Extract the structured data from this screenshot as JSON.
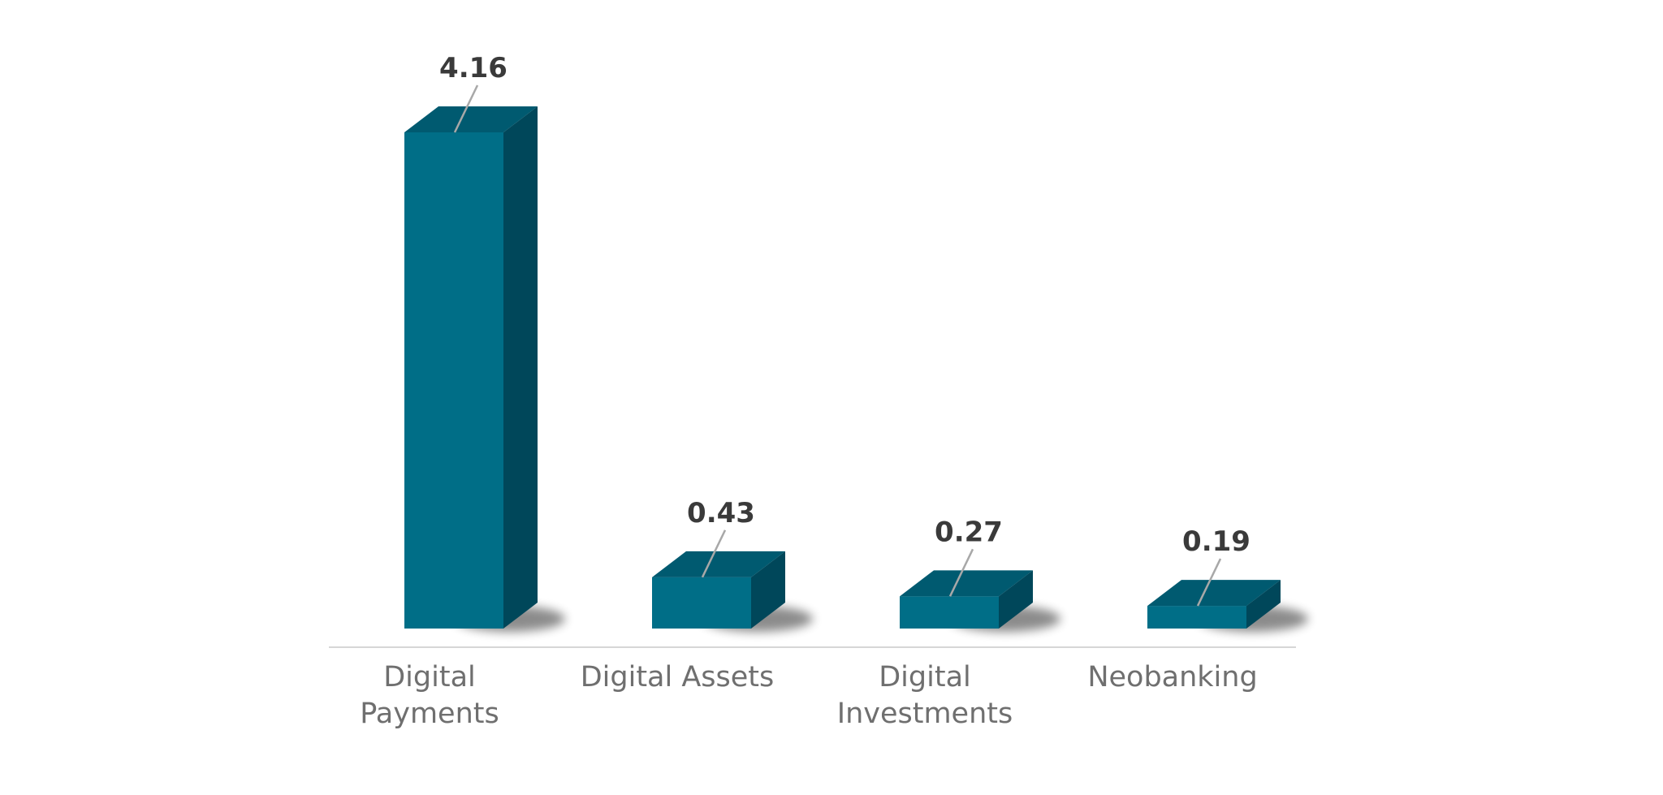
{
  "chart_data": {
    "type": "bar",
    "categories": [
      [
        "Digital",
        "Payments"
      ],
      [
        "Digital Assets"
      ],
      [
        "Digital",
        "Investments"
      ],
      [
        "Neobanking"
      ]
    ],
    "values": [
      4.16,
      0.43,
      0.27,
      0.19
    ],
    "data_labels": [
      "4.16",
      "0.43",
      "0.27",
      "0.19"
    ],
    "title": "",
    "xlabel": "",
    "ylabel": "",
    "ylim": [
      0,
      4.16
    ],
    "grid": false,
    "legend": "none",
    "style": "3d-column",
    "colors": {
      "front": "#006e87",
      "top": "#005a70",
      "side": "#00475a",
      "leader": "#a8a8a8",
      "baseline": "#d6d6d6",
      "value_text": "#3a3a3a",
      "category_text": "#6f6f6f"
    }
  }
}
